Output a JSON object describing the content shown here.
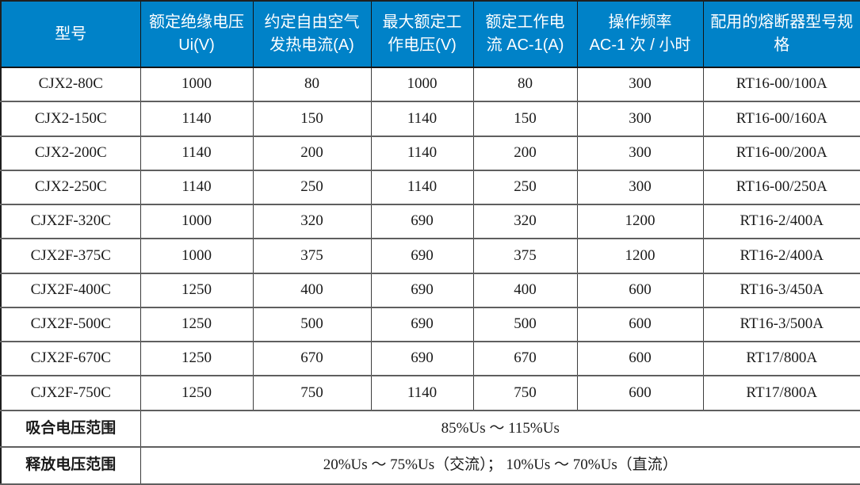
{
  "table": {
    "colors": {
      "header_bg": "#0082C8",
      "header_text": "#FFFFFF",
      "body_text": "#1A1A1A",
      "grid_line": "#5F5F5F",
      "outer_border": "#1F1F1F",
      "row_bg": "#FFFFFF"
    },
    "columns": [
      {
        "label": "型号"
      },
      {
        "label": "额定绝缘电压 Ui(V)"
      },
      {
        "label": "约定自由空气发热电流(A)"
      },
      {
        "label": "最大额定工作电压(V)"
      },
      {
        "label": "额定工作电流 AC-1(A)"
      },
      {
        "label": "操作频率\nAC-1 次 / 小时"
      },
      {
        "label": "配用的熔断器型号规格"
      }
    ],
    "rows": [
      [
        "CJX2-80C",
        "1000",
        "80",
        "1000",
        "80",
        "300",
        "RT16-00/100A"
      ],
      [
        "CJX2-150C",
        "1140",
        "150",
        "1140",
        "150",
        "300",
        "RT16-00/160A"
      ],
      [
        "CJX2-200C",
        "1140",
        "200",
        "1140",
        "200",
        "300",
        "RT16-00/200A"
      ],
      [
        "CJX2-250C",
        "1140",
        "250",
        "1140",
        "250",
        "300",
        "RT16-00/250A"
      ],
      [
        "CJX2F-320C",
        "1000",
        "320",
        "690",
        "320",
        "1200",
        "RT16-2/400A"
      ],
      [
        "CJX2F-375C",
        "1000",
        "375",
        "690",
        "375",
        "1200",
        "RT16-2/400A"
      ],
      [
        "CJX2F-400C",
        "1250",
        "400",
        "690",
        "400",
        "600",
        "RT16-3/450A"
      ],
      [
        "CJX2F-500C",
        "1250",
        "500",
        "690",
        "500",
        "600",
        "RT16-3/500A"
      ],
      [
        "CJX2F-670C",
        "1250",
        "670",
        "690",
        "670",
        "600",
        "RT17/800A"
      ],
      [
        "CJX2F-750C",
        "1250",
        "750",
        "1140",
        "750",
        "600",
        "RT17/800A"
      ]
    ],
    "footer_rows": [
      {
        "label": "吸合电压范围",
        "value": "85%Us ～ 115%Us"
      },
      {
        "label": "释放电压范围",
        "value": "20%Us ～ 75%Us（交流）； 10%Us ～ 70%Us（直流）"
      }
    ]
  }
}
